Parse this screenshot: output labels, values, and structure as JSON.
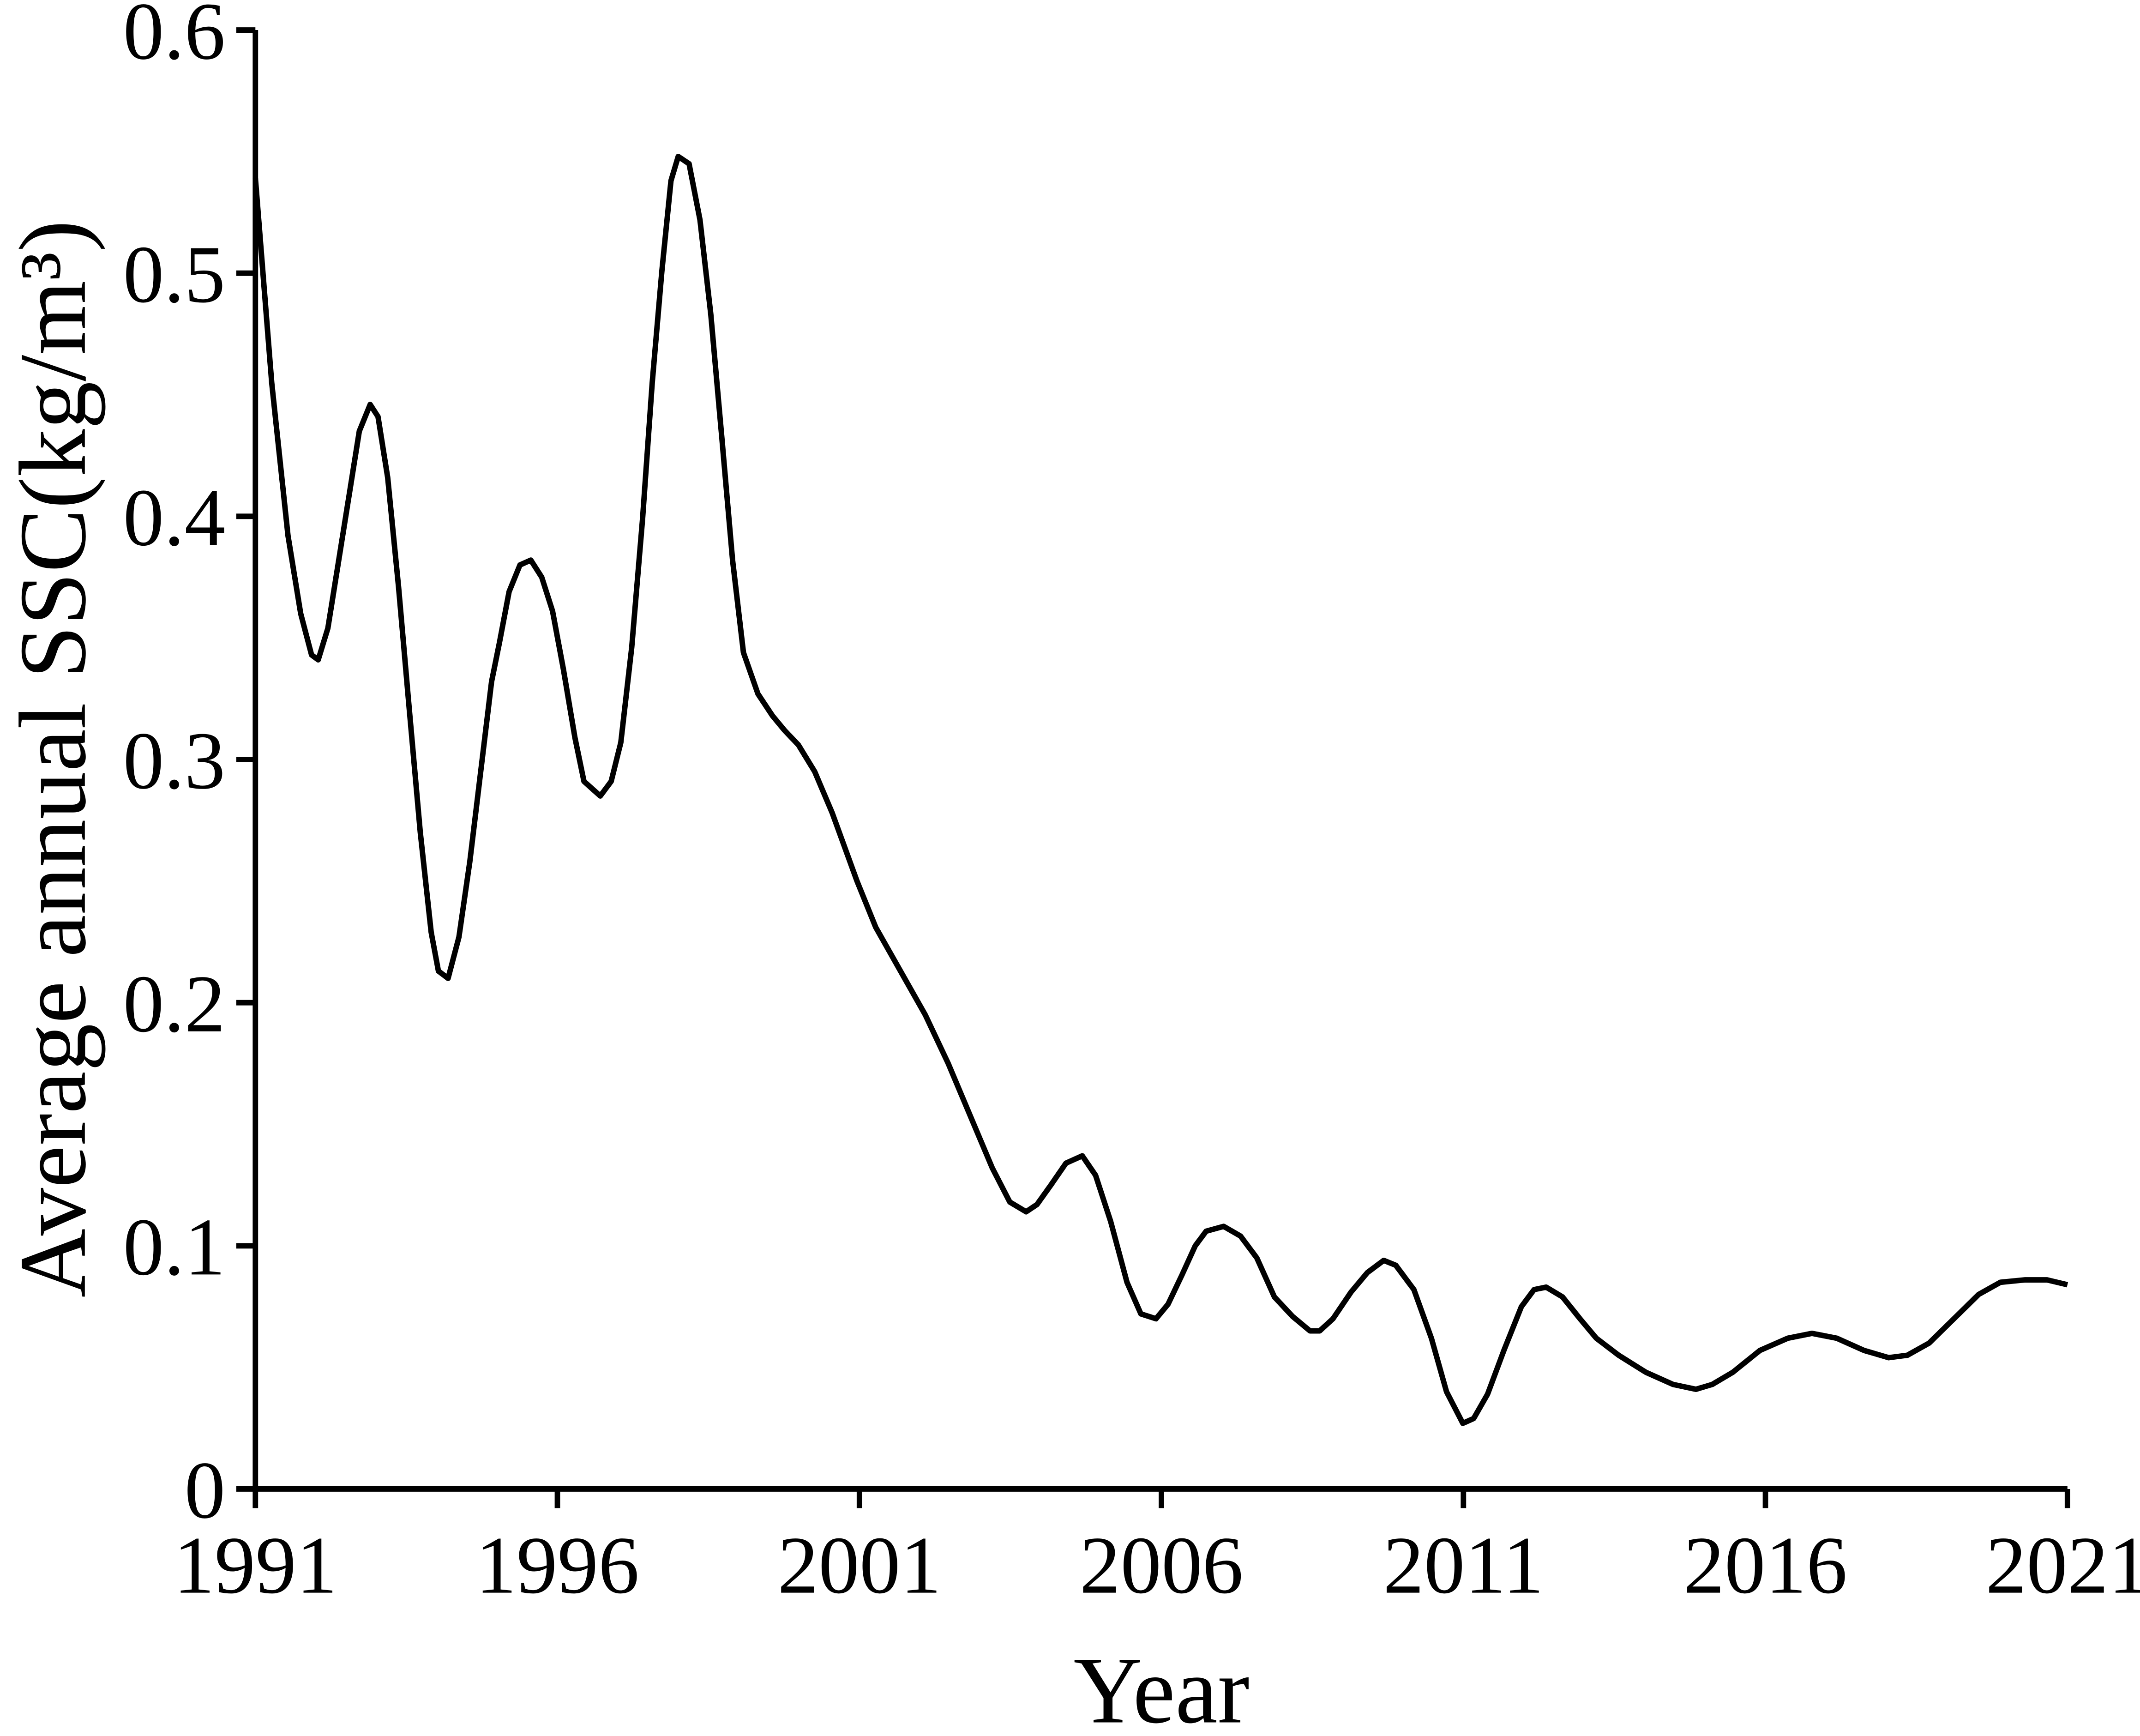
{
  "chart_data": {
    "type": "line",
    "xlabel": "Year",
    "ylabel": "Average annual SSC(kg/m³)",
    "x": [
      1991,
      1991.27,
      1991.54,
      1991.75,
      1991.93,
      1992.04,
      1992.2,
      1992.38,
      1992.56,
      1992.72,
      1992.9,
      1993.03,
      1993.19,
      1993.37,
      1993.55,
      1993.73,
      1993.91,
      1994.03,
      1994.19,
      1994.37,
      1994.55,
      1994.73,
      1994.91,
      1995.04,
      1995.2,
      1995.38,
      1995.56,
      1995.74,
      1995.92,
      1996.1,
      1996.29,
      1996.44,
      1996.71,
      1996.89,
      1997.05,
      1997.23,
      1997.41,
      1997.57,
      1997.73,
      1997.88,
      1998.0,
      1998.18,
      1998.36,
      1998.54,
      1998.72,
      1998.9,
      1999.08,
      1999.32,
      1999.56,
      1999.76,
      1999.99,
      2000.26,
      2000.55,
      2000.96,
      2001.27,
      2001.68,
      2002.09,
      2002.47,
      2002.86,
      2003.2,
      2003.49,
      2003.76,
      2003.94,
      2004.17,
      2004.42,
      2004.69,
      2004.91,
      2005.16,
      2005.43,
      2005.66,
      2005.91,
      2006.11,
      2006.34,
      2006.56,
      2006.74,
      2007.03,
      2007.31,
      2007.58,
      2007.87,
      2008.17,
      2008.46,
      2008.62,
      2008.84,
      2009.14,
      2009.41,
      2009.68,
      2009.88,
      2010.18,
      2010.47,
      2010.72,
      2010.99,
      2011.17,
      2011.4,
      2011.67,
      2011.96,
      2012.17,
      2012.37,
      2012.64,
      2012.93,
      2013.2,
      2013.57,
      2014.02,
      2014.47,
      2014.85,
      2015.12,
      2015.46,
      2015.91,
      2016.37,
      2016.77,
      2017.18,
      2017.63,
      2018.04,
      2018.35,
      2018.71,
      2019.12,
      2019.53,
      2019.89,
      2020.3,
      2020.66,
      2021.0
    ],
    "series": [
      {
        "color": "#000000",
        "values": [
          0.539,
          0.455,
          0.392,
          0.36,
          0.343,
          0.341,
          0.354,
          0.382,
          0.41,
          0.435,
          0.446,
          0.441,
          0.416,
          0.371,
          0.32,
          0.27,
          0.229,
          0.213,
          0.21,
          0.227,
          0.258,
          0.295,
          0.332,
          0.348,
          0.369,
          0.38,
          0.382,
          0.375,
          0.361,
          0.337,
          0.309,
          0.291,
          0.285,
          0.291,
          0.307,
          0.346,
          0.399,
          0.455,
          0.501,
          0.538,
          0.548,
          0.545,
          0.522,
          0.483,
          0.433,
          0.382,
          0.344,
          0.327,
          0.318,
          0.312,
          0.306,
          0.295,
          0.278,
          0.25,
          0.231,
          0.213,
          0.195,
          0.175,
          0.152,
          0.132,
          0.118,
          0.114,
          0.117,
          0.125,
          0.134,
          0.137,
          0.129,
          0.11,
          0.085,
          0.072,
          0.07,
          0.076,
          0.088,
          0.1,
          0.106,
          0.108,
          0.104,
          0.095,
          0.079,
          0.071,
          0.065,
          0.065,
          0.07,
          0.081,
          0.089,
          0.094,
          0.092,
          0.082,
          0.062,
          0.04,
          0.027,
          0.029,
          0.039,
          0.057,
          0.075,
          0.082,
          0.083,
          0.079,
          0.07,
          0.062,
          0.055,
          0.048,
          0.043,
          0.041,
          0.043,
          0.048,
          0.057,
          0.062,
          0.064,
          0.062,
          0.057,
          0.054,
          0.055,
          0.06,
          0.07,
          0.08,
          0.085,
          0.086,
          0.086,
          0.084
        ]
      }
    ],
    "xlim": [
      1991,
      2021
    ],
    "xticks": [
      1991,
      1996,
      2001,
      2006,
      2011,
      2016,
      2021
    ],
    "ylim": [
      0,
      0.6
    ],
    "yticks": [
      0,
      0.1,
      0.2,
      0.3,
      0.4,
      0.5,
      0.6
    ]
  }
}
